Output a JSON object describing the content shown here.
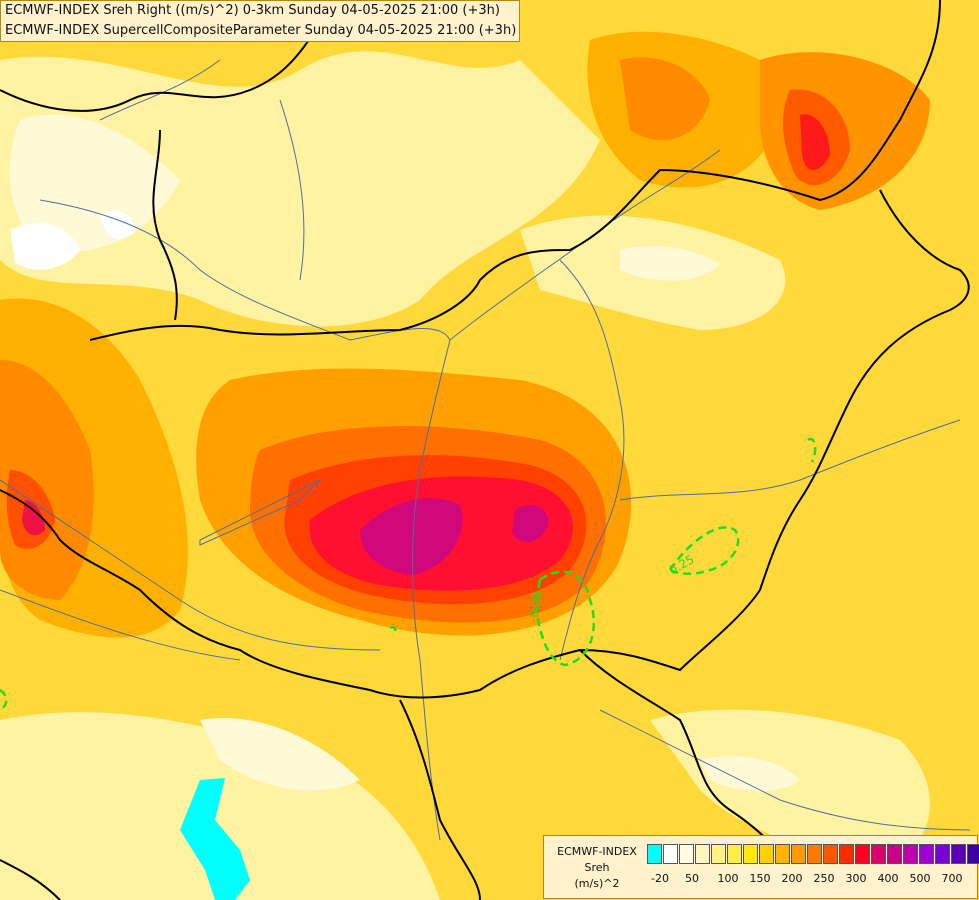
{
  "titles": {
    "line1": "ECMWF-INDEX Sreh Right ((m/s)^2) 0-3km Sunday 04-05-2025 21:00 (+3h)",
    "line2": "ECMWF-INDEX SupercellCompositeParameter Sunday 04-05-2025 21:00 (+3h)"
  },
  "legend": {
    "source": "ECMWF-INDEX",
    "variable": "Sreh",
    "unit": "(m/s)^2",
    "colors": [
      "#00ffff",
      "#ffffff",
      "#fffbe0",
      "#fff6bb",
      "#fff27f",
      "#ffee44",
      "#ffea00",
      "#ffd000",
      "#ffb400",
      "#ff9b00",
      "#ff7a00",
      "#ff5500",
      "#ff2a00",
      "#ff0022",
      "#e0006a",
      "#cc0088",
      "#c000b0",
      "#a000d8",
      "#7a00d8",
      "#5a00b8",
      "#3a00a0",
      "#000080"
    ],
    "tick_labels": [
      "-20",
      "50",
      "100",
      "150",
      "200",
      "250",
      "300",
      "400",
      "500",
      "700"
    ]
  },
  "contours": {
    "label_a": "0.25",
    "label_b": "0.25"
  },
  "colors": {
    "border": "#000000",
    "river": "#4a6fa5",
    "scp_contour": "#22dd22",
    "lake": "#00ffff"
  }
}
